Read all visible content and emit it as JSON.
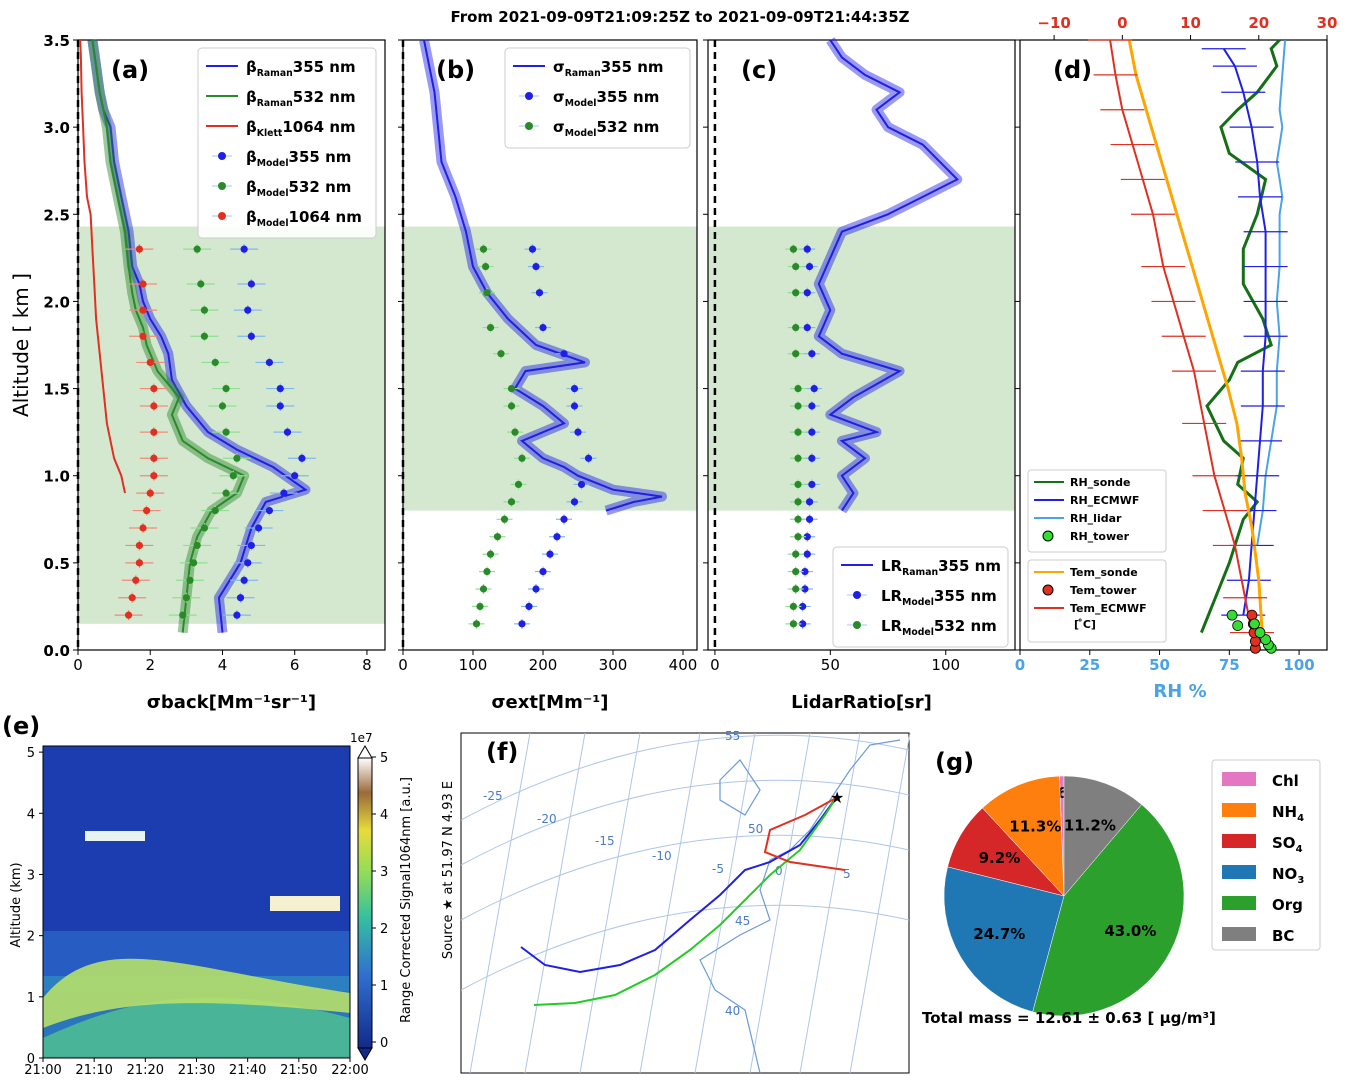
{
  "header": {
    "title": "From 2021-09-09T21:09:25Z  to  2021-09-09T21:44:35Z"
  },
  "colors": {
    "blue": "#1f1fe6",
    "green": "#2a8a2a",
    "red": "#e03020",
    "shade": "#d4e8d0",
    "orange": "#ffa500",
    "lightblue": "#4aa3e8",
    "limegreen": "#33dd33",
    "darkgreen": "#157015",
    "pie_chl": "#e377c2",
    "pie_nh4": "#ff7f0e",
    "pie_so4": "#d62728",
    "pie_no3": "#1f77b4",
    "pie_org": "#2ca02c",
    "pie_bc": "#7f7f7f"
  },
  "chart_data": [
    {
      "id": "a",
      "type": "line",
      "panel_label": "(a)",
      "xlabel": "σback[Mm⁻¹sr⁻¹]",
      "ylabel": "Altitude [ km ]",
      "xlim": [
        0,
        8.5
      ],
      "ylim": [
        0,
        3.5
      ],
      "xticks": [
        "0",
        "2",
        "4",
        "6",
        "8"
      ],
      "yticks": [
        "0.0",
        "0.5",
        "1.0",
        "1.5",
        "2.0",
        "2.5",
        "3.0",
        "3.5"
      ],
      "shaded_band": [
        0.15,
        2.43
      ],
      "legend": [
        "βRaman355 nm",
        "βRaman532 nm",
        "βKlett1064 nm",
        "βModel355 nm",
        "βModel532 nm",
        "βModel1064 nm"
      ],
      "series": [
        {
          "name": "βRaman355 nm",
          "color": "blue",
          "x": [
            4.0,
            3.9,
            4.5,
            4.8,
            5.2,
            6.3,
            5.4,
            4.4,
            3.6,
            3.0,
            2.6,
            2.5,
            2.3,
            2.0,
            1.8,
            1.7,
            1.5,
            1.4,
            1.2,
            1.0,
            0.9,
            0.7,
            0.6,
            0.5,
            0.4
          ],
          "y": [
            0.1,
            0.3,
            0.5,
            0.7,
            0.85,
            0.92,
            1.05,
            1.15,
            1.25,
            1.4,
            1.55,
            1.7,
            1.8,
            1.9,
            2.0,
            2.1,
            2.2,
            2.4,
            2.6,
            2.8,
            3.0,
            3.1,
            3.2,
            3.35,
            3.5
          ]
        },
        {
          "name": "βRaman532 nm",
          "color": "green",
          "x": [
            2.9,
            3.0,
            3.1,
            3.3,
            3.7,
            4.4,
            4.6,
            3.6,
            2.9,
            2.6,
            2.8,
            2.2,
            1.9,
            1.8,
            1.6,
            1.5,
            1.4,
            1.3,
            1.1,
            0.9,
            0.8,
            0.7,
            0.6,
            0.5,
            0.4
          ],
          "y": [
            0.1,
            0.3,
            0.5,
            0.65,
            0.8,
            0.9,
            1.0,
            1.1,
            1.2,
            1.35,
            1.45,
            1.6,
            1.75,
            1.85,
            1.95,
            2.05,
            2.2,
            2.4,
            2.6,
            2.8,
            3.0,
            3.1,
            3.2,
            3.35,
            3.5
          ]
        },
        {
          "name": "βKlett1064 nm",
          "color": "red",
          "x": [
            1.3,
            1.2,
            1.0,
            0.8,
            0.7,
            0.6,
            0.5,
            0.45,
            0.4,
            0.35,
            0.25,
            0.18,
            0.14,
            0.1,
            0.08,
            0.06
          ],
          "y": [
            0.9,
            1.0,
            1.1,
            1.3,
            1.5,
            1.7,
            1.9,
            2.1,
            2.3,
            2.5,
            2.6,
            2.8,
            3.0,
            3.2,
            3.4,
            3.5
          ]
        },
        {
          "name": "βModel355 nm",
          "color": "blue",
          "y": [
            0.2,
            0.3,
            0.4,
            0.5,
            0.6,
            0.7,
            0.8,
            0.9,
            1.0,
            1.1,
            1.25,
            1.4,
            1.5,
            1.65,
            1.8,
            1.95,
            2.1,
            2.3
          ],
          "x": [
            4.4,
            4.5,
            4.6,
            4.7,
            4.8,
            5.0,
            5.3,
            5.7,
            6.0,
            6.2,
            5.8,
            5.6,
            5.6,
            5.3,
            4.8,
            4.7,
            4.8,
            4.6
          ]
        },
        {
          "name": "βModel532 nm",
          "color": "green",
          "y": [
            0.2,
            0.3,
            0.4,
            0.5,
            0.6,
            0.7,
            0.8,
            0.9,
            1.0,
            1.1,
            1.25,
            1.4,
            1.5,
            1.65,
            1.8,
            1.95,
            2.1,
            2.3
          ],
          "x": [
            2.9,
            3.0,
            3.1,
            3.2,
            3.3,
            3.5,
            3.8,
            4.1,
            4.3,
            4.4,
            4.1,
            4.0,
            4.1,
            3.8,
            3.5,
            3.5,
            3.4,
            3.3
          ]
        },
        {
          "name": "βModel1064 nm",
          "color": "red",
          "y": [
            0.2,
            0.3,
            0.4,
            0.5,
            0.6,
            0.7,
            0.8,
            0.9,
            1.0,
            1.1,
            1.25,
            1.4,
            1.5,
            1.65,
            1.8,
            1.95,
            2.1,
            2.3
          ],
          "x": [
            1.4,
            1.5,
            1.6,
            1.7,
            1.7,
            1.8,
            1.9,
            2.0,
            2.1,
            2.1,
            2.1,
            2.1,
            2.1,
            2.0,
            1.8,
            1.8,
            1.8,
            1.7
          ]
        }
      ]
    },
    {
      "id": "b",
      "type": "line",
      "panel_label": "(b)",
      "xlabel": "σext[Mm⁻¹]",
      "ylabel": "",
      "xlim": [
        0,
        420
      ],
      "ylim": [
        0,
        3.5
      ],
      "xticks": [
        "0",
        "100",
        "200",
        "300",
        "400"
      ],
      "shaded_band": [
        0.8,
        2.43
      ],
      "legend": [
        "σRaman355 nm",
        "σModel355 nm",
        "σModel532 nm"
      ],
      "series": [
        {
          "name": "σRaman355 nm",
          "color": "blue",
          "x": [
            290,
            330,
            370,
            300,
            250,
            230,
            200,
            170,
            230,
            200,
            160,
            175,
            260,
            190,
            150,
            120,
            100,
            90,
            75,
            55,
            50,
            45,
            40,
            35,
            30
          ],
          "y": [
            0.8,
            0.85,
            0.88,
            0.92,
            1.0,
            1.05,
            1.1,
            1.2,
            1.3,
            1.4,
            1.5,
            1.6,
            1.65,
            1.75,
            1.9,
            2.05,
            2.2,
            2.4,
            2.6,
            2.8,
            3.0,
            3.2,
            3.3,
            3.4,
            3.5
          ]
        },
        {
          "name": "σModel355 nm",
          "color": "blue",
          "y": [
            0.15,
            0.25,
            0.35,
            0.45,
            0.55,
            0.65,
            0.75,
            0.85,
            0.95,
            1.1,
            1.25,
            1.4,
            1.5,
            1.7,
            1.85,
            2.05,
            2.2,
            2.3
          ],
          "x": [
            170,
            180,
            190,
            200,
            210,
            220,
            230,
            245,
            255,
            265,
            250,
            245,
            245,
            230,
            200,
            195,
            190,
            185
          ]
        },
        {
          "name": "σModel532 nm",
          "color": "green",
          "y": [
            0.15,
            0.25,
            0.35,
            0.45,
            0.55,
            0.65,
            0.75,
            0.85,
            0.95,
            1.1,
            1.25,
            1.4,
            1.5,
            1.7,
            1.85,
            2.05,
            2.2,
            2.3
          ],
          "x": [
            105,
            110,
            115,
            120,
            125,
            135,
            145,
            155,
            165,
            170,
            160,
            155,
            155,
            140,
            125,
            120,
            118,
            115
          ]
        }
      ]
    },
    {
      "id": "c",
      "type": "line",
      "panel_label": "(c)",
      "xlabel": "LidarRatio[sr]",
      "ylabel": "",
      "xlim": [
        -3,
        130
      ],
      "ylim": [
        0,
        3.5
      ],
      "xticks": [
        "0",
        "50",
        "100"
      ],
      "shaded_band": [
        0.8,
        2.43
      ],
      "legend": [
        "LRRaman355 nm",
        "LRModel355 nm",
        "LRModel532 nm"
      ],
      "series": [
        {
          "name": "LRRaman355 nm",
          "color": "blue",
          "x": [
            55,
            60,
            55,
            65,
            55,
            70,
            50,
            60,
            80,
            55,
            45,
            50,
            45,
            50,
            55,
            75,
            90,
            105,
            90,
            75,
            70,
            80,
            65,
            55,
            50
          ],
          "y": [
            0.8,
            0.9,
            1.0,
            1.1,
            1.2,
            1.25,
            1.35,
            1.45,
            1.6,
            1.7,
            1.8,
            1.95,
            2.1,
            2.25,
            2.4,
            2.5,
            2.6,
            2.7,
            2.9,
            3.0,
            3.1,
            3.2,
            3.3,
            3.4,
            3.5
          ]
        },
        {
          "name": "LRModel355 nm",
          "color": "blue",
          "y": [
            0.15,
            0.25,
            0.35,
            0.45,
            0.55,
            0.65,
            0.75,
            0.85,
            0.95,
            1.1,
            1.25,
            1.4,
            1.5,
            1.7,
            1.85,
            2.05,
            2.2,
            2.3
          ],
          "x": [
            38,
            38,
            39,
            39,
            40,
            40,
            41,
            41,
            42,
            42,
            42,
            42,
            43,
            42,
            40,
            40,
            41,
            40
          ]
        },
        {
          "name": "LRModel532 nm",
          "color": "green",
          "y": [
            0.15,
            0.25,
            0.35,
            0.45,
            0.55,
            0.65,
            0.75,
            0.85,
            0.95,
            1.1,
            1.25,
            1.4,
            1.5,
            1.7,
            1.85,
            2.05,
            2.2,
            2.3
          ],
          "x": [
            34,
            34,
            35,
            35,
            35,
            36,
            36,
            36,
            36,
            36,
            36,
            36,
            36,
            35,
            35,
            35,
            35,
            34
          ]
        }
      ]
    },
    {
      "id": "d",
      "type": "line",
      "panel_label": "(d)",
      "xlabel": "RH %",
      "ylabel": "",
      "xlim": [
        0,
        110
      ],
      "ylim": [
        0,
        3.5
      ],
      "xticks": [
        "0",
        "25",
        "50",
        "75",
        "100"
      ],
      "top_xlim": [
        -15,
        30
      ],
      "top_xticks": [
        "−10",
        "0",
        "10",
        "20",
        "30"
      ],
      "legend1": [
        "RH_sonde",
        "RH_ECMWF",
        "RH_lidar",
        "RH_tower"
      ],
      "legend2": [
        "Tem_sonde",
        "Tem_tower",
        "Tem_ECMWF\n[ ̊C]"
      ],
      "series": [
        {
          "name": "RH_sonde",
          "color": "darkgreen",
          "x": [
            65,
            70,
            75,
            80,
            85,
            78,
            80,
            73,
            67,
            75,
            78,
            90,
            87,
            80,
            80,
            85,
            88,
            75,
            72,
            78,
            85,
            92,
            90,
            93
          ],
          "y": [
            0.1,
            0.3,
            0.5,
            0.75,
            0.85,
            0.95,
            1.1,
            1.2,
            1.4,
            1.55,
            1.65,
            1.75,
            1.9,
            2.1,
            2.3,
            2.5,
            2.7,
            2.85,
            3.0,
            3.1,
            3.2,
            3.35,
            3.45,
            3.5
          ]
        },
        {
          "name": "RH_lidar",
          "color": "lightblue",
          "x": [
            85,
            87,
            88,
            90,
            92,
            92,
            93,
            92,
            93,
            93,
            93,
            94,
            93,
            92,
            93,
            94,
            93,
            94,
            95
          ],
          "y": [
            0.6,
            0.8,
            1.0,
            1.2,
            1.4,
            1.6,
            1.8,
            2.0,
            2.2,
            2.4,
            2.5,
            2.6,
            2.7,
            2.8,
            2.9,
            3.0,
            3.1,
            3.3,
            3.5
          ]
        },
        {
          "name": "RH_ECMWF",
          "color": "blue",
          "x": [
            80,
            82,
            83,
            84,
            85,
            86,
            87,
            87,
            88,
            88,
            88,
            88,
            86,
            85,
            83,
            80,
            77,
            73
          ],
          "y": [
            0.2,
            0.4,
            0.6,
            0.8,
            1.0,
            1.2,
            1.4,
            1.6,
            1.8,
            2.0,
            2.2,
            2.4,
            2.6,
            2.8,
            3.0,
            3.2,
            3.35,
            3.45
          ]
        },
        {
          "name": "Tem_sonde",
          "color": "orange",
          "x": [
            20.5,
            20,
            19,
            18,
            17.5,
            16.8,
            15.5,
            14,
            12.5,
            11,
            9.5,
            8,
            6.5,
            5,
            3.5,
            2,
            1
          ],
          "y": [
            0.1,
            0.4,
            0.7,
            0.9,
            1.1,
            1.3,
            1.5,
            1.7,
            1.9,
            2.1,
            2.3,
            2.5,
            2.7,
            2.9,
            3.1,
            3.3,
            3.5
          ]
        },
        {
          "name": "Tem_ECMWF\n[ ̊C]",
          "color": "red",
          "x": [
            19,
            18,
            16.5,
            15,
            13.5,
            12,
            10.5,
            9,
            7.5,
            6,
            4.5,
            3,
            1.5,
            0,
            -1,
            -1.8
          ],
          "y": [
            0.1,
            0.3,
            0.6,
            0.8,
            1.0,
            1.3,
            1.6,
            1.8,
            2.0,
            2.2,
            2.5,
            2.7,
            2.9,
            3.1,
            3.3,
            3.5
          ]
        },
        {
          "name": "Tem_tower",
          "color": "red",
          "x": [
            19.5,
            19.5,
            19.3,
            19.2,
            19.0
          ],
          "y": [
            0.01,
            0.05,
            0.1,
            0.15,
            0.2
          ]
        },
        {
          "name": "RH_tower",
          "color": "limegreen",
          "x": [
            90,
            89,
            88,
            86,
            84,
            78,
            76
          ],
          "y": [
            0.01,
            0.03,
            0.06,
            0.1,
            0.15,
            0.14,
            0.2
          ]
        }
      ]
    },
    {
      "id": "e",
      "type": "heatmap",
      "panel_label": "(e)",
      "xlabel": "",
      "ylabel": "Altitude (km)",
      "xticks": [
        "21:00",
        "21:10",
        "21:20",
        "21:30",
        "21:40",
        "21:50",
        "22:00"
      ],
      "yticks": [
        "0",
        "1",
        "2",
        "3",
        "4",
        "5"
      ],
      "colorbar_label": "Range Corrected Signal1064nm [a.u.]",
      "colorbar_ticks": [
        "0",
        "1",
        "2",
        "3",
        "4",
        "5"
      ],
      "colorbar_exponent": "1e7"
    },
    {
      "id": "f",
      "type": "scatter",
      "panel_label": "(f)",
      "source_label": "Source ★  at    51.97 N    4.93 E",
      "lon_labels": [
        "-25",
        "-20",
        "-15",
        "-10",
        "-5",
        "0",
        "5"
      ],
      "lat_labels": [
        "55",
        "50",
        "45",
        "40"
      ]
    },
    {
      "id": "g",
      "type": "pie",
      "panel_label": "(g)",
      "categories": [
        "Chl",
        "NH4",
        "SO4",
        "NO3",
        "Org",
        "BC"
      ],
      "values": [
        0.6,
        11.3,
        9.2,
        24.7,
        43.0,
        11.2
      ],
      "labels": [
        "0.6%",
        "11.3%",
        "9.2%",
        "24.7%",
        "43.0%",
        "11.2%"
      ],
      "total_text": "Total mass = 12.61 ± 0.63 [ μg/m³]"
    }
  ]
}
